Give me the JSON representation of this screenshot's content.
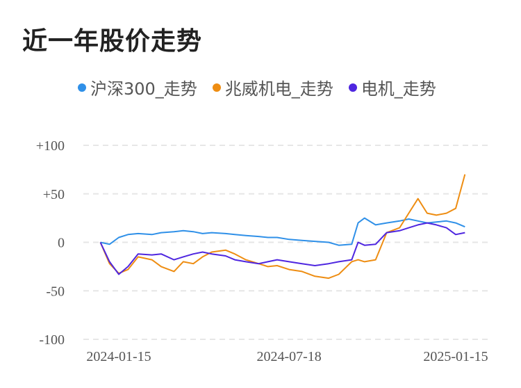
{
  "title": "近一年股价走势",
  "chart_data": {
    "type": "line",
    "title": "近一年股价走势",
    "xlabel": "",
    "ylabel": "",
    "ylim": [
      -100,
      100
    ],
    "yticks": [
      100,
      50,
      0,
      -50,
      -100
    ],
    "ytick_labels": [
      "+100",
      "+50",
      "0",
      "-50",
      "-100"
    ],
    "xtick_labels": [
      "2024-01-15",
      "2024-07-18",
      "2025-01-15"
    ],
    "x": [
      "2023-12-26",
      "2024-01-05",
      "2024-01-15",
      "2024-01-25",
      "2024-02-05",
      "2024-02-20",
      "2024-03-01",
      "2024-03-15",
      "2024-03-25",
      "2024-04-05",
      "2024-04-15",
      "2024-04-25",
      "2024-05-10",
      "2024-05-20",
      "2024-06-01",
      "2024-06-15",
      "2024-06-25",
      "2024-07-05",
      "2024-07-18",
      "2024-08-01",
      "2024-08-15",
      "2024-08-30",
      "2024-09-10",
      "2024-09-24",
      "2024-10-01",
      "2024-10-08",
      "2024-10-20",
      "2024-11-01",
      "2024-11-15",
      "2024-11-25",
      "2024-12-05",
      "2024-12-15",
      "2024-12-25",
      "2025-01-05",
      "2025-01-15",
      "2025-01-25"
    ],
    "grid": true,
    "legend": "top",
    "colors": {
      "series1": "#2f90e8",
      "series2": "#ee8d12",
      "series3": "#4e26e0",
      "grid": "#e6e6e6"
    },
    "series": [
      {
        "name": "沪深300_走势",
        "color": "#2f90e8",
        "values": [
          0,
          -2,
          5,
          8,
          9,
          8,
          10,
          11,
          12,
          11,
          9,
          10,
          9,
          8,
          7,
          6,
          5,
          5,
          3,
          2,
          1,
          0,
          -3,
          -2,
          20,
          25,
          18,
          20,
          22,
          24,
          22,
          20,
          21,
          22,
          20,
          16
        ]
      },
      {
        "name": "兆威机电_走势",
        "color": "#ee8d12",
        "values": [
          0,
          -22,
          -32,
          -28,
          -15,
          -18,
          -25,
          -30,
          -20,
          -22,
          -15,
          -10,
          -8,
          -12,
          -18,
          -22,
          -25,
          -24,
          -28,
          -30,
          -35,
          -37,
          -33,
          -20,
          -18,
          -20,
          -18,
          10,
          15,
          30,
          45,
          30,
          28,
          30,
          35,
          70
        ]
      },
      {
        "name": "电机_走势",
        "color": "#4e26e0",
        "values": [
          0,
          -20,
          -33,
          -25,
          -12,
          -13,
          -12,
          -18,
          -15,
          -12,
          -10,
          -12,
          -14,
          -18,
          -20,
          -22,
          -20,
          -18,
          -20,
          -22,
          -24,
          -22,
          -20,
          -18,
          0,
          -3,
          -2,
          10,
          12,
          15,
          18,
          20,
          18,
          15,
          8,
          10
        ]
      }
    ]
  }
}
